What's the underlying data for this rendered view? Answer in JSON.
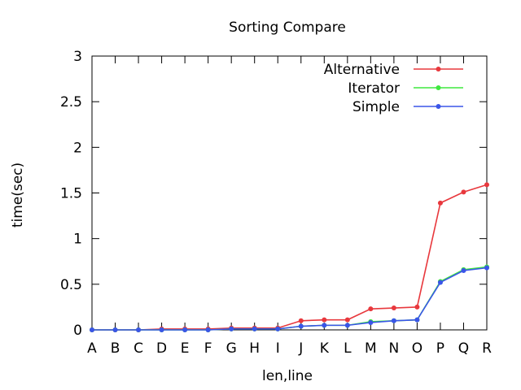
{
  "chart_data": {
    "type": "line",
    "title": "Sorting Compare",
    "xlabel": "len,line",
    "ylabel": "time(sec)",
    "categories": [
      "A",
      "B",
      "C",
      "D",
      "E",
      "F",
      "G",
      "H",
      "I",
      "J",
      "K",
      "L",
      "M",
      "N",
      "O",
      "P",
      "Q",
      "R"
    ],
    "ylim": [
      0,
      3
    ],
    "yticks": [
      "0",
      "0.5",
      "1",
      "1.5",
      "2",
      "2.5",
      "3"
    ],
    "grid": false,
    "legend_position": "top-right",
    "series": [
      {
        "name": "Alternative",
        "color": "#e8383d",
        "values": [
          0,
          0,
          0,
          0.01,
          0.01,
          0.01,
          0.02,
          0.02,
          0.02,
          0.1,
          0.11,
          0.11,
          0.23,
          0.24,
          0.25,
          1.39,
          1.51,
          1.59
        ]
      },
      {
        "name": "Iterator",
        "color": "#3fe83f",
        "values": [
          0,
          0,
          0,
          0,
          0,
          0,
          0.01,
          0.01,
          0.01,
          0.04,
          0.05,
          0.05,
          0.09,
          0.1,
          0.11,
          0.53,
          0.66,
          0.69
        ]
      },
      {
        "name": "Simple",
        "color": "#3a55e8",
        "values": [
          0,
          0,
          0,
          0,
          0,
          0,
          0.01,
          0.01,
          0.01,
          0.04,
          0.05,
          0.05,
          0.08,
          0.1,
          0.11,
          0.52,
          0.65,
          0.68
        ]
      }
    ]
  }
}
